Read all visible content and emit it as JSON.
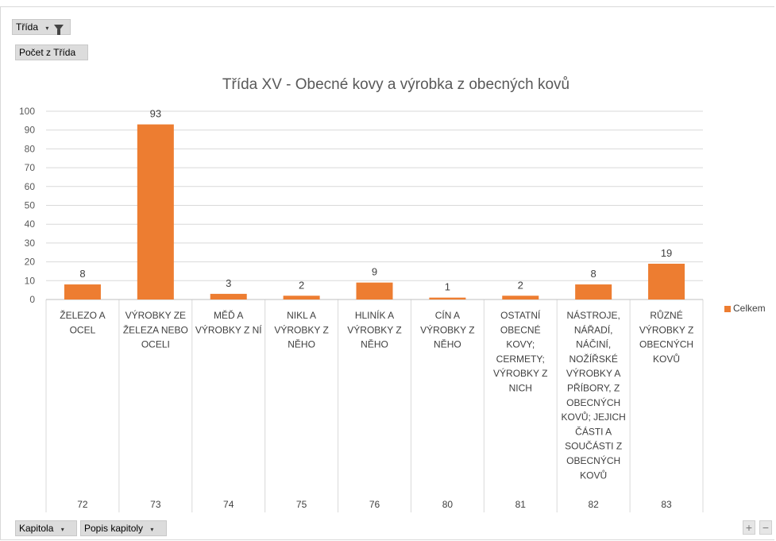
{
  "filter_field": {
    "label": "Třída"
  },
  "value_field": {
    "label": "Počet z Třída"
  },
  "row_fields": [
    {
      "label": "Kapitola"
    },
    {
      "label": "Popis kapitoly"
    }
  ],
  "zoom": {
    "plus": "+",
    "minus": "−"
  },
  "colors": {
    "bar": "#ed7d31",
    "grid": "#d9d9d9"
  },
  "chart_data": {
    "type": "bar",
    "title": "Třída XV - Obecné kovy a výrobka z obecných kovů",
    "ylim": [
      0,
      100
    ],
    "yticks": [
      0,
      10,
      20,
      30,
      40,
      50,
      60,
      70,
      80,
      90,
      100
    ],
    "legend_position": "right",
    "series": [
      {
        "name": "Celkem",
        "values": [
          8,
          93,
          3,
          2,
          9,
          1,
          2,
          8,
          19
        ]
      }
    ],
    "categories": [
      {
        "code": "72",
        "label_lines": [
          "ŽELEZO A",
          "OCEL"
        ]
      },
      {
        "code": "73",
        "label_lines": [
          "VÝROBKY ZE",
          "ŽELEZA NEBO",
          "OCELI"
        ]
      },
      {
        "code": "74",
        "label_lines": [
          "MĚĎ A",
          "VÝROBKY Z NÍ"
        ]
      },
      {
        "code": "75",
        "label_lines": [
          "NIKL A",
          "VÝROBKY Z",
          "NĚHO"
        ]
      },
      {
        "code": "76",
        "label_lines": [
          "HLINÍK A",
          "VÝROBKY Z",
          "NĚHO"
        ]
      },
      {
        "code": "80",
        "label_lines": [
          "CÍN A",
          "VÝROBKY Z",
          "NĚHO"
        ]
      },
      {
        "code": "81",
        "label_lines": [
          "OSTATNÍ",
          "OBECNÉ",
          "KOVY;",
          "CERMETY;",
          "VÝROBKY Z",
          "NICH"
        ]
      },
      {
        "code": "82",
        "label_lines": [
          "NÁSTROJE,",
          "NÁŘADÍ,",
          "NÁČINÍ,",
          "NOŽÍŘSKÉ",
          "VÝROBKY A",
          "PŘÍBORY, Z",
          "OBECNÝCH",
          "KOVŮ; JEJICH",
          "ČÁSTI A",
          "SOUČÁSTI Z",
          "OBECNÝCH",
          "KOVŮ"
        ]
      },
      {
        "code": "83",
        "label_lines": [
          "RŮZNÉ",
          "VÝROBKY Z",
          "OBECNÝCH",
          "KOVŮ"
        ]
      }
    ]
  }
}
